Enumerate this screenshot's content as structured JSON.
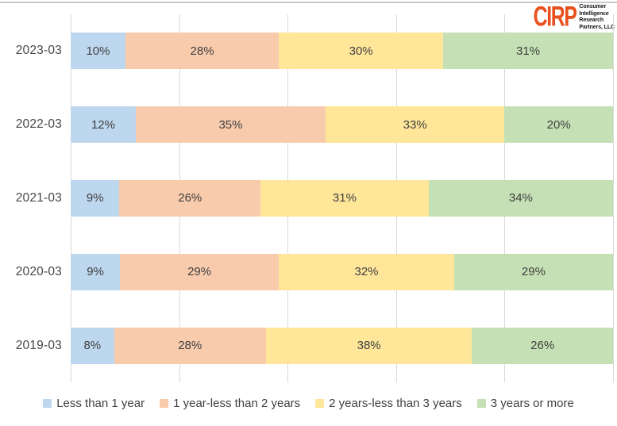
{
  "logo": {
    "brand": "CIRP",
    "brand_color": "#e8501e",
    "org_lines": [
      "Consumer",
      "Intelligence",
      "Research",
      "Partners, LLC"
    ]
  },
  "colors": {
    "gridline": "#d9d9d9",
    "top_border": "#c9c9c9",
    "label_text": "#3f3f3f",
    "axis_text": "#474747"
  },
  "chart_data": {
    "type": "bar",
    "variant": "horizontal-100pct-stacked",
    "title": "",
    "categories": [
      "2023-03",
      "2022-03",
      "2021-03",
      "2020-03",
      "2019-03"
    ],
    "series": [
      {
        "name": "Less than 1 year",
        "color": "#bdd7ee",
        "values": [
          10,
          12,
          9,
          9,
          8
        ]
      },
      {
        "name": "1 year-less than 2 years",
        "color": "#f8cbad",
        "values": [
          28,
          35,
          26,
          29,
          28
        ]
      },
      {
        "name": "2 years-less than 3 years",
        "color": "#ffe699",
        "values": [
          30,
          33,
          31,
          32,
          38
        ]
      },
      {
        "name": "3 years or more",
        "color": "#c5e0b4",
        "values": [
          31,
          20,
          34,
          29,
          26
        ]
      }
    ],
    "data_label_suffix": "%",
    "x_axis": {
      "min": 0,
      "max": 100,
      "gridline_interval": 20,
      "gridlines_visible": true,
      "tick_labels_visible": false
    },
    "legend_position": "bottom"
  }
}
